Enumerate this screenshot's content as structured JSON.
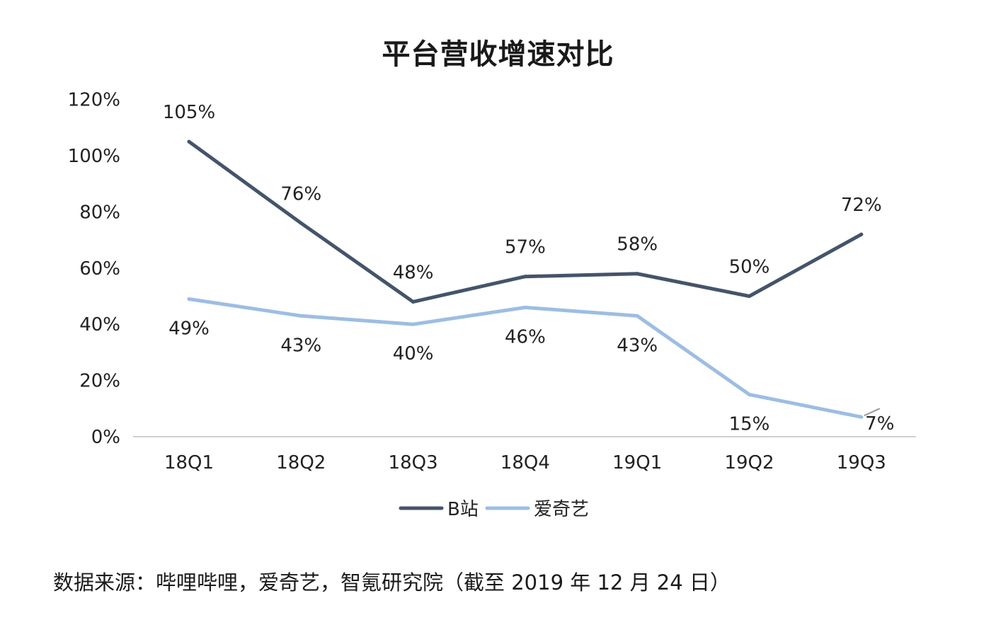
{
  "chart_data": {
    "type": "line",
    "title": "平台营收增速对比",
    "categories": [
      "18Q1",
      "18Q2",
      "18Q3",
      "18Q4",
      "19Q1",
      "19Q2",
      "19Q3"
    ],
    "yticks": [
      "0%",
      "20%",
      "40%",
      "60%",
      "80%",
      "100%",
      "120%"
    ],
    "ylim": [
      0,
      120
    ],
    "grid": false,
    "legend_position": "bottom",
    "series": [
      {
        "name": "B站",
        "color": "#44546a",
        "values": [
          105,
          76,
          48,
          57,
          58,
          50,
          72
        ],
        "labels": [
          "105%",
          "76%",
          "48%",
          "57%",
          "58%",
          "50%",
          "72%"
        ]
      },
      {
        "name": "爱奇艺",
        "color": "#9dbde3",
        "values": [
          49,
          43,
          40,
          46,
          43,
          15,
          7
        ],
        "labels": [
          "49%",
          "43%",
          "40%",
          "46%",
          "43%",
          "15%",
          "7%"
        ]
      }
    ]
  },
  "source_note": "数据来源：哔哩哔哩，爱奇艺，智氪研究院（截至 2019 年 12 月 24 日）"
}
